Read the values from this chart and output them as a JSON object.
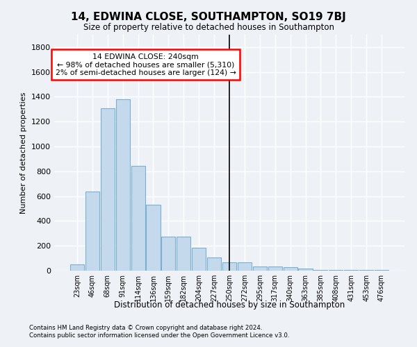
{
  "title": "14, EDWINA CLOSE, SOUTHAMPTON, SO19 7BJ",
  "subtitle": "Size of property relative to detached houses in Southampton",
  "xlabel": "Distribution of detached houses by size in Southampton",
  "ylabel": "Number of detached properties",
  "bar_color": "#c5d9ed",
  "bar_edge_color": "#7aafd4",
  "categories": [
    "23sqm",
    "46sqm",
    "68sqm",
    "91sqm",
    "114sqm",
    "136sqm",
    "159sqm",
    "182sqm",
    "204sqm",
    "227sqm",
    "250sqm",
    "272sqm",
    "295sqm",
    "317sqm",
    "340sqm",
    "363sqm",
    "385sqm",
    "408sqm",
    "431sqm",
    "453sqm",
    "476sqm"
  ],
  "values": [
    50,
    635,
    1305,
    1380,
    845,
    530,
    275,
    275,
    185,
    105,
    65,
    65,
    35,
    35,
    28,
    15,
    8,
    5,
    5,
    5,
    5
  ],
  "ylim": [
    0,
    1900
  ],
  "yticks": [
    0,
    200,
    400,
    600,
    800,
    1000,
    1200,
    1400,
    1600,
    1800
  ],
  "property_bin_index": 10,
  "annotation_title": "14 EDWINA CLOSE: 240sqm",
  "annotation_line1": "← 98% of detached houses are smaller (5,310)",
  "annotation_line2": "2% of semi-detached houses are larger (124) →",
  "vline_color": "#000000",
  "background_color": "#eef2f7",
  "grid_color": "#ffffff",
  "footer1": "Contains HM Land Registry data © Crown copyright and database right 2024.",
  "footer2": "Contains public sector information licensed under the Open Government Licence v3.0."
}
